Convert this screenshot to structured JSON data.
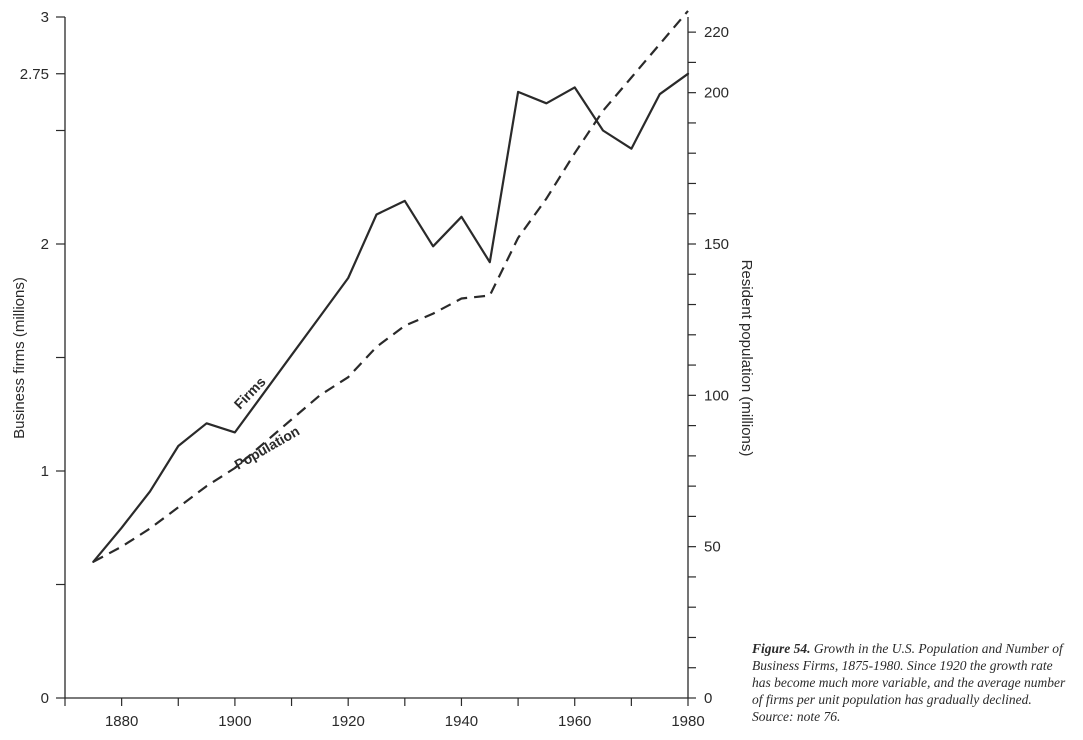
{
  "chart_data": {
    "type": "line",
    "x": [
      1875,
      1880,
      1885,
      1890,
      1895,
      1900,
      1905,
      1910,
      1915,
      1920,
      1925,
      1930,
      1935,
      1940,
      1945,
      1950,
      1955,
      1960,
      1965,
      1970,
      1975,
      1980
    ],
    "x_ticks": [
      "1880",
      "1900",
      "1920",
      "1940",
      "1960",
      "1980"
    ],
    "xlim": [
      1870,
      1980
    ],
    "left_axis": {
      "label": "Business firms (millions)",
      "ylim": [
        0,
        3
      ],
      "tick_labels": [
        {
          "value": 0,
          "label": "0"
        },
        {
          "value": 1,
          "label": "1"
        },
        {
          "value": 2,
          "label": "2"
        },
        {
          "value": 2.75,
          "label": "2.75"
        },
        {
          "value": 3,
          "label": "3"
        }
      ],
      "unlabeled_ticks": [
        0.5,
        1.5,
        2.5
      ]
    },
    "right_axis": {
      "label": "Resident population (millions)",
      "ylim": [
        0,
        225
      ],
      "tick_labels": [
        {
          "value": 0,
          "label": "0"
        },
        {
          "value": 50,
          "label": "50"
        },
        {
          "value": 100,
          "label": "100"
        },
        {
          "value": 150,
          "label": "150"
        },
        {
          "value": 200,
          "label": "200"
        },
        {
          "value": 220,
          "label": "220"
        }
      ]
    },
    "series": [
      {
        "name": "Firms",
        "axis": "left",
        "style": "solid",
        "values": [
          0.6,
          0.75,
          0.91,
          1.11,
          1.21,
          1.17,
          1.34,
          1.51,
          1.68,
          1.85,
          2.13,
          2.19,
          1.99,
          2.12,
          1.92,
          2.67,
          2.62,
          2.69,
          2.5,
          2.42,
          2.66,
          2.75
        ]
      },
      {
        "name": "Population",
        "axis": "right",
        "style": "dashed",
        "values": [
          45,
          50,
          56,
          63,
          70,
          76,
          84,
          92,
          100,
          106,
          116,
          123,
          127,
          132,
          133,
          152,
          165,
          180,
          194,
          205,
          216,
          227
        ]
      }
    ],
    "grid": false,
    "legend": "inline labels"
  },
  "caption": {
    "figure_label": "Figure 54.",
    "text": " Growth in the U.S. Population and Number of Business Firms, 1875-1980. Since 1920 the growth rate has become much more variable, and the average number of firms per unit population has gradually declined. Source: note 76."
  },
  "colors": {
    "ink": "#2a2a2a",
    "background": "#ffffff"
  }
}
